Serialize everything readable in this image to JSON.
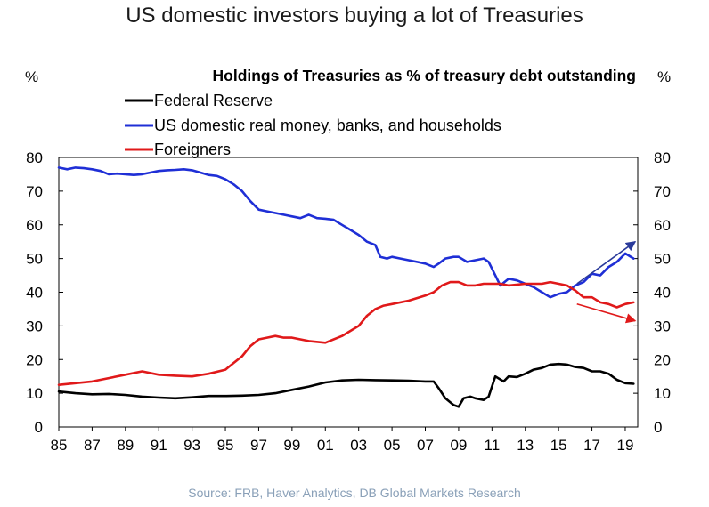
{
  "page_title": "US domestic investors buying a lot of Treasuries",
  "source": "Source: FRB, Haver Analytics,  DB Global Markets Research",
  "chart_data": {
    "type": "line",
    "title": "Holdings of Treasuries as % of treasury debt outstanding",
    "ylabel_left": "%",
    "ylabel_right": "%",
    "ylim": [
      0,
      80
    ],
    "yticks": [
      0,
      10,
      20,
      30,
      40,
      50,
      60,
      70,
      80
    ],
    "xlim": [
      1985,
      2019.75
    ],
    "xticks": [
      1985,
      1987,
      1989,
      1991,
      1993,
      1995,
      1997,
      1999,
      2001,
      2003,
      2005,
      2007,
      2009,
      2011,
      2013,
      2015,
      2017,
      2019
    ],
    "xtick_labels": [
      "85",
      "87",
      "89",
      "91",
      "93",
      "95",
      "97",
      "99",
      "01",
      "03",
      "05",
      "07",
      "09",
      "11",
      "13",
      "15",
      "17",
      "19"
    ],
    "grid": false,
    "legend_position": "top-left",
    "series": [
      {
        "name": "Federal Reserve",
        "color": "#000000",
        "points": [
          [
            1985,
            10.5
          ],
          [
            1986,
            10
          ],
          [
            1987,
            9.7
          ],
          [
            1988,
            9.8
          ],
          [
            1989,
            9.5
          ],
          [
            1990,
            9
          ],
          [
            1991,
            8.7
          ],
          [
            1992,
            8.5
          ],
          [
            1993,
            8.8
          ],
          [
            1994,
            9.2
          ],
          [
            1995,
            9.2
          ],
          [
            1996,
            9.3
          ],
          [
            1997,
            9.5
          ],
          [
            1998,
            10
          ],
          [
            1999,
            11
          ],
          [
            2000,
            12
          ],
          [
            2001,
            13.2
          ],
          [
            2002,
            13.8
          ],
          [
            2003,
            14
          ],
          [
            2004,
            13.9
          ],
          [
            2005,
            13.8
          ],
          [
            2006,
            13.7
          ],
          [
            2007,
            13.5
          ],
          [
            2007.5,
            13.5
          ],
          [
            2007.8,
            11.5
          ],
          [
            2008.2,
            8.5
          ],
          [
            2008.7,
            6.5
          ],
          [
            2009,
            6
          ],
          [
            2009.3,
            8.5
          ],
          [
            2009.7,
            9
          ],
          [
            2010,
            8.5
          ],
          [
            2010.5,
            8
          ],
          [
            2010.8,
            9
          ],
          [
            2011.2,
            15
          ],
          [
            2011.7,
            13.5
          ],
          [
            2012,
            15
          ],
          [
            2012.5,
            14.8
          ],
          [
            2013,
            15.8
          ],
          [
            2013.5,
            17
          ],
          [
            2014,
            17.5
          ],
          [
            2014.5,
            18.5
          ],
          [
            2015,
            18.7
          ],
          [
            2015.5,
            18.5
          ],
          [
            2016,
            17.8
          ],
          [
            2016.5,
            17.5
          ],
          [
            2017,
            16.5
          ],
          [
            2017.5,
            16.5
          ],
          [
            2018,
            15.8
          ],
          [
            2018.5,
            14
          ],
          [
            2019,
            13
          ],
          [
            2019.5,
            12.8
          ]
        ]
      },
      {
        "name": "US domestic real money, banks, and households",
        "color": "#1f2fd6",
        "points": [
          [
            1985,
            77
          ],
          [
            1985.5,
            76.5
          ],
          [
            1986,
            77
          ],
          [
            1986.5,
            76.8
          ],
          [
            1987,
            76.5
          ],
          [
            1987.5,
            76
          ],
          [
            1988,
            75
          ],
          [
            1988.5,
            75.2
          ],
          [
            1989,
            75
          ],
          [
            1989.5,
            74.8
          ],
          [
            1990,
            75
          ],
          [
            1990.5,
            75.5
          ],
          [
            1991,
            76
          ],
          [
            1991.5,
            76.2
          ],
          [
            1992,
            76.3
          ],
          [
            1992.5,
            76.5
          ],
          [
            1993,
            76.2
          ],
          [
            1993.5,
            75.5
          ],
          [
            1994,
            74.8
          ],
          [
            1994.5,
            74.5
          ],
          [
            1995,
            73.5
          ],
          [
            1995.5,
            72
          ],
          [
            1996,
            70
          ],
          [
            1996.5,
            67
          ],
          [
            1997,
            64.5
          ],
          [
            1997.5,
            64
          ],
          [
            1998,
            63.5
          ],
          [
            1998.5,
            63
          ],
          [
            1999,
            62.5
          ],
          [
            1999.5,
            62
          ],
          [
            2000,
            63
          ],
          [
            2000.5,
            62
          ],
          [
            2001,
            61.8
          ],
          [
            2001.5,
            61.5
          ],
          [
            2002,
            60
          ],
          [
            2002.5,
            58.5
          ],
          [
            2003,
            57
          ],
          [
            2003.5,
            55
          ],
          [
            2004,
            54
          ],
          [
            2004.3,
            50.5
          ],
          [
            2004.7,
            50
          ],
          [
            2005,
            50.5
          ],
          [
            2005.5,
            50
          ],
          [
            2006,
            49.5
          ],
          [
            2006.5,
            49
          ],
          [
            2007,
            48.5
          ],
          [
            2007.5,
            47.5
          ],
          [
            2007.8,
            48.5
          ],
          [
            2008.2,
            50
          ],
          [
            2008.7,
            50.5
          ],
          [
            2009,
            50.5
          ],
          [
            2009.5,
            49
          ],
          [
            2010,
            49.5
          ],
          [
            2010.5,
            50
          ],
          [
            2010.8,
            49
          ],
          [
            2011.2,
            45
          ],
          [
            2011.5,
            42
          ],
          [
            2012,
            44
          ],
          [
            2012.5,
            43.5
          ],
          [
            2013,
            42.5
          ],
          [
            2013.5,
            41.5
          ],
          [
            2014,
            40
          ],
          [
            2014.5,
            38.5
          ],
          [
            2015,
            39.5
          ],
          [
            2015.5,
            40
          ],
          [
            2016,
            42
          ],
          [
            2016.5,
            43
          ],
          [
            2017,
            45.5
          ],
          [
            2017.5,
            45
          ],
          [
            2018,
            47.5
          ],
          [
            2018.5,
            49
          ],
          [
            2019,
            51.5
          ],
          [
            2019.5,
            50
          ]
        ]
      },
      {
        "name": "Foreigners",
        "color": "#e0191a",
        "points": [
          [
            1985,
            12.5
          ],
          [
            1986,
            13
          ],
          [
            1987,
            13.5
          ],
          [
            1988,
            14.5
          ],
          [
            1989,
            15.5
          ],
          [
            1990,
            16.5
          ],
          [
            1991,
            15.5
          ],
          [
            1992,
            15.2
          ],
          [
            1993,
            15
          ],
          [
            1994,
            15.8
          ],
          [
            1995,
            17
          ],
          [
            1995.5,
            19
          ],
          [
            1996,
            21
          ],
          [
            1996.5,
            24
          ],
          [
            1997,
            26
          ],
          [
            1997.5,
            26.5
          ],
          [
            1998,
            27
          ],
          [
            1998.5,
            26.5
          ],
          [
            1999,
            26.5
          ],
          [
            2000,
            25.5
          ],
          [
            2001,
            25
          ],
          [
            2002,
            27
          ],
          [
            2003,
            30
          ],
          [
            2003.5,
            33
          ],
          [
            2004,
            35
          ],
          [
            2004.5,
            36
          ],
          [
            2005,
            36.5
          ],
          [
            2006,
            37.5
          ],
          [
            2007,
            39
          ],
          [
            2007.5,
            40
          ],
          [
            2008,
            42
          ],
          [
            2008.5,
            43
          ],
          [
            2009,
            43
          ],
          [
            2009.5,
            42
          ],
          [
            2010,
            42
          ],
          [
            2010.5,
            42.5
          ],
          [
            2011,
            42.5
          ],
          [
            2011.5,
            42.5
          ],
          [
            2012,
            42
          ],
          [
            2013,
            42.5
          ],
          [
            2014,
            42.5
          ],
          [
            2014.5,
            43
          ],
          [
            2015,
            42.5
          ],
          [
            2015.5,
            42
          ],
          [
            2016,
            40.5
          ],
          [
            2016.5,
            38.5
          ],
          [
            2017,
            38.5
          ],
          [
            2017.5,
            37
          ],
          [
            2018,
            36.5
          ],
          [
            2018.5,
            35.5
          ],
          [
            2019,
            36.5
          ],
          [
            2019.5,
            37
          ]
        ]
      }
    ],
    "annotations": [
      {
        "name": "blue-trend-arrow",
        "color": "#2a3a9a",
        "from": [
          2016.1,
          42.5
        ],
        "to": [
          2019.6,
          55
        ]
      },
      {
        "name": "red-trend-arrow",
        "color": "#e0191a",
        "from": [
          2016.1,
          36.5
        ],
        "to": [
          2019.6,
          31.5
        ]
      }
    ]
  }
}
